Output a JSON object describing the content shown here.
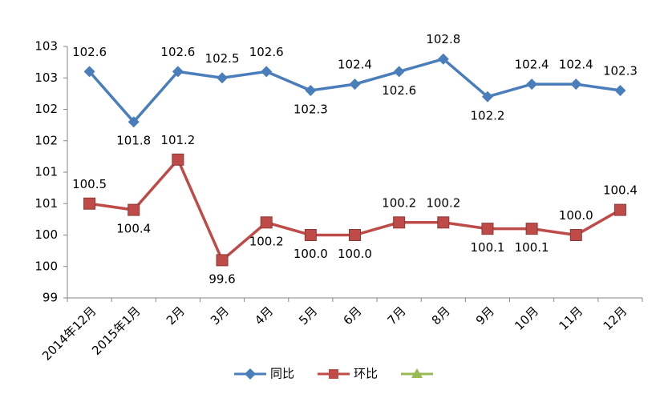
{
  "chart_data": {
    "type": "line",
    "categories": [
      "2014年12月",
      "2015年1月",
      "2月",
      "3月",
      "4月",
      "5月",
      "6月",
      "7月",
      "8月",
      "9月",
      "10月",
      "11月",
      "12月"
    ],
    "series": [
      {
        "name": "同比",
        "color": "#4a7ebb",
        "marker": "diamond",
        "values": [
          102.6,
          101.8,
          102.6,
          102.5,
          102.6,
          102.3,
          102.4,
          102.6,
          102.8,
          102.2,
          102.4,
          102.4,
          102.3
        ]
      },
      {
        "name": "环比",
        "color": "#be4b48",
        "marker": "square",
        "values": [
          100.5,
          100.4,
          101.2,
          99.6,
          100.2,
          100.0,
          100.0,
          100.2,
          100.2,
          100.1,
          100.1,
          100.0,
          100.4
        ],
        "value_labels": [
          "100.5",
          "100.4",
          "101.2",
          "99.6",
          "100.2",
          "100.0",
          "100.0",
          "100.2",
          "100.2",
          "100.1",
          "100.1",
          "100.0",
          "100.4"
        ]
      }
    ],
    "ylim": [
      99,
      103
    ],
    "yticks": [
      99,
      {
        "value": 99.5,
        "label": "100"
      },
      100,
      {
        "value": 100.5,
        "label": "101"
      },
      101,
      {
        "value": 101.5,
        "label": "102"
      },
      102,
      {
        "value": 102.5,
        "label": "103"
      },
      103
    ],
    "grid": false
  }
}
